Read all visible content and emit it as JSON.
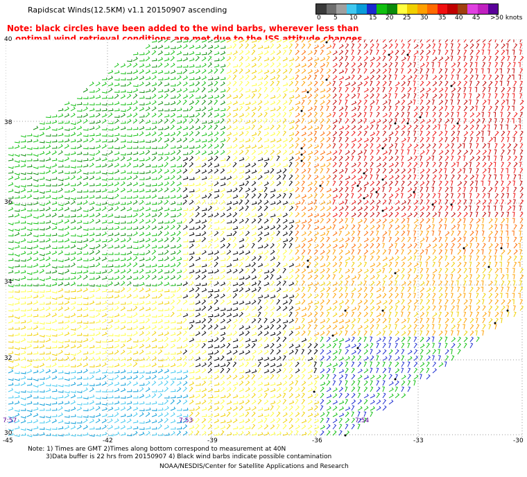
{
  "header": {
    "title": "Rapidscat Winds(12.5KM) v1.1 20150907 ascending",
    "note_line1": "Note: black circles have been added to the wind barbs, wherever less than",
    "note_line2": "optimal wind retrieval conditions are met due to the ISS attitude changes."
  },
  "legend": {
    "unit": "knots",
    "labels": [
      "0",
      "5",
      "10",
      "15",
      "20",
      "25",
      "30",
      "35",
      "40",
      "45",
      ">50 knots"
    ],
    "colors": [
      "#3a3a3a",
      "#6e6e6e",
      "#a0a0a0",
      "#40c8f0",
      "#0a9cd8",
      "#1a2ad0",
      "#10c010",
      "#0a8a0a",
      "#ffff40",
      "#f0d000",
      "#ffa000",
      "#ff6a00",
      "#f01010",
      "#c00000",
      "#a04010",
      "#e040e0",
      "#c020c0",
      "#5a0099"
    ]
  },
  "map": {
    "lat_labels": [
      "40",
      "38",
      "36",
      "34",
      "32",
      "30"
    ],
    "lon_labels": [
      "-45",
      "-42",
      "-39",
      "-36",
      "-33",
      "-30"
    ],
    "time_labels": [
      "7:57",
      "7:53",
      "7:54"
    ]
  },
  "footer": {
    "note1": "Note: 1) Times are GMT 2)Times along bottom correspond to measurement at 40N",
    "note2": "3)Data buffer is 22 hrs from 20150907 4) Black wind barbs indicate possible contamination",
    "credit": "NOAA/NESDIS/Center for Satellite Applications and Research"
  }
}
